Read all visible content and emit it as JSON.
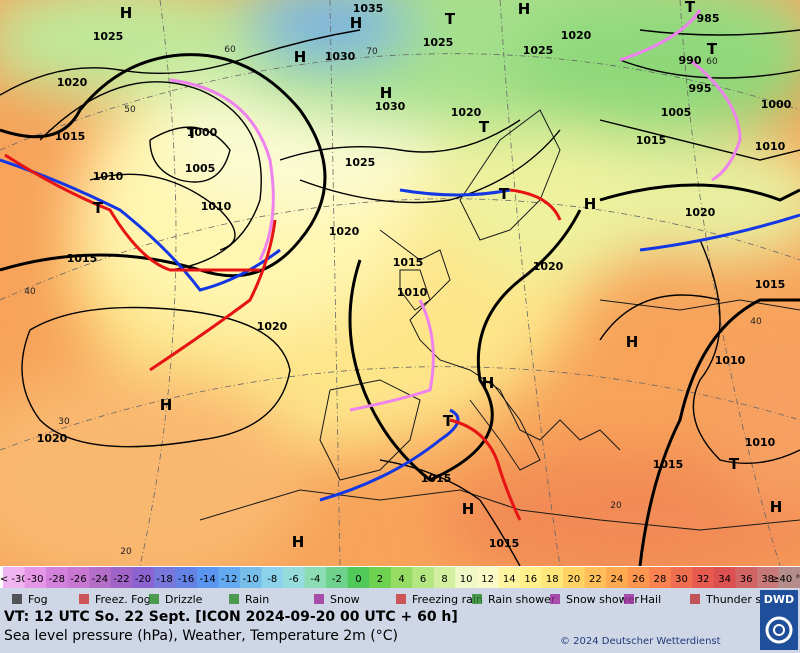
{
  "map": {
    "pressure_labels": [
      1035,
      1025,
      1025,
      1025,
      1020,
      985,
      990,
      995,
      1000,
      1005,
      1015,
      1010,
      1020,
      1015,
      1000,
      1005,
      1010,
      1010,
      1030,
      1030,
      1020,
      1025,
      1020,
      1020,
      1015,
      1020,
      1015,
      1010,
      1020,
      1015,
      1010,
      1010,
      1015,
      1015,
      1015,
      1020
    ],
    "centers": [
      "H",
      "H",
      "T",
      "H",
      "T",
      "T",
      "H",
      "H",
      "T",
      "T",
      "T",
      "T",
      "H",
      "H",
      "H",
      "H",
      "T",
      "H",
      "H",
      "H",
      "T"
    ],
    "temperature_labels": [
      60,
      50,
      40,
      30,
      20,
      40,
      70,
      60,
      20
    ]
  },
  "colorbar": {
    "labels": [
      "< -30",
      -30,
      -28,
      -26,
      -24,
      -22,
      -20,
      -18,
      -16,
      -14,
      -12,
      -10,
      -8,
      -6,
      -4,
      -2,
      0,
      2,
      4,
      6,
      8,
      10,
      12,
      14,
      16,
      18,
      20,
      22,
      24,
      26,
      28,
      30,
      32,
      34,
      36,
      38,
      "≥40 °C"
    ],
    "colors": [
      "#f0b4f0",
      "#e696e6",
      "#d282dc",
      "#c878d2",
      "#b46ec8",
      "#a064c8",
      "#8c64d2",
      "#7878dc",
      "#6482e6",
      "#5a96f0",
      "#64aaf0",
      "#78beeb",
      "#8cd2eb",
      "#96dcdc",
      "#8cdcb4",
      "#6ed28c",
      "#50c85a",
      "#6ed250",
      "#96dc64",
      "#b4e682",
      "#d2f0a0",
      "#f0f8c8",
      "#fafac8",
      "#fff5a0",
      "#fff08c",
      "#ffe678",
      "#ffd264",
      "#ffbe5a",
      "#ffaa50",
      "#ff9650",
      "#fa8250",
      "#f06e50",
      "#e65a50",
      "#dc5050",
      "#d26464",
      "#c87878",
      "#b48c8c"
    ]
  },
  "legend": [
    "Fog",
    "Freez. Fog",
    "Drizzle",
    "Rain",
    "Snow",
    "Freezing rain",
    "Rain shower",
    "Snow shower",
    "Hail",
    "Thunder storm"
  ],
  "footer": {
    "valid_time": "VT: 12 UTC So.  22 Sept. [ICON 2024-09-20  00 UTC + 60 h]",
    "description": "Sea level pressure (hPa), Weather, Temperature 2m (°C)",
    "copyright": "© 2024 Deutscher Wetterdienst",
    "logo": "DWD"
  }
}
